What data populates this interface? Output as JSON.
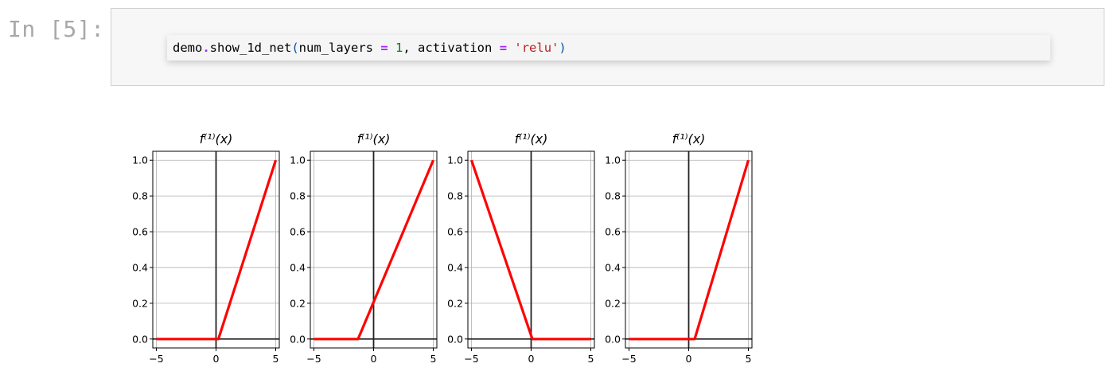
{
  "cell": {
    "prompt": "In [5]:",
    "code": {
      "obj": "demo",
      "dot": ".",
      "fn": "show_1d_net",
      "open": "(",
      "arg1_name": "num_layers ",
      "eq1": "=",
      "arg1_value": "1",
      "comma": ", ",
      "arg2_name": "activation ",
      "eq2": "=",
      "arg2_value": "'relu'",
      "close": ")"
    }
  },
  "chart_data": [
    {
      "type": "line",
      "title": "f⁽¹⁾(x)",
      "x_ticks": [
        "−5",
        "0",
        "5"
      ],
      "y_ticks": [
        "0.0",
        "0.2",
        "0.4",
        "0.6",
        "0.8",
        "1.0"
      ],
      "xlim": [
        -5.3,
        5.3
      ],
      "ylim": [
        -0.05,
        1.05
      ],
      "grid": true,
      "series": [
        {
          "color": "#ff0000",
          "x": [
            -5,
            0.2,
            5
          ],
          "y": [
            0,
            0,
            1
          ]
        }
      ]
    },
    {
      "type": "line",
      "title": "f⁽¹⁾(x)",
      "x_ticks": [
        "−5",
        "0",
        "5"
      ],
      "y_ticks": [
        "0.0",
        "0.2",
        "0.4",
        "0.6",
        "0.8",
        "1.0"
      ],
      "xlim": [
        -5.3,
        5.3
      ],
      "ylim": [
        -0.05,
        1.05
      ],
      "grid": true,
      "series": [
        {
          "color": "#ff0000",
          "x": [
            -5,
            -1.3,
            5
          ],
          "y": [
            0,
            0,
            1
          ]
        }
      ]
    },
    {
      "type": "line",
      "title": "f⁽¹⁾(x)",
      "x_ticks": [
        "−5",
        "0",
        "5"
      ],
      "y_ticks": [
        "0.0",
        "0.2",
        "0.4",
        "0.6",
        "0.8",
        "1.0"
      ],
      "xlim": [
        -5.3,
        5.3
      ],
      "ylim": [
        -0.05,
        1.05
      ],
      "grid": true,
      "series": [
        {
          "color": "#ff0000",
          "x": [
            -5,
            0.1,
            5
          ],
          "y": [
            1,
            0,
            0
          ]
        }
      ]
    },
    {
      "type": "line",
      "title": "f⁽¹⁾(x)",
      "x_ticks": [
        "−5",
        "0",
        "5"
      ],
      "y_ticks": [
        "0.0",
        "0.2",
        "0.4",
        "0.6",
        "0.8",
        "1.0"
      ],
      "xlim": [
        -5.3,
        5.3
      ],
      "ylim": [
        -0.05,
        1.05
      ],
      "grid": true,
      "series": [
        {
          "color": "#ff0000",
          "x": [
            -5,
            0.5,
            5
          ],
          "y": [
            0,
            0,
            1
          ]
        }
      ]
    }
  ]
}
